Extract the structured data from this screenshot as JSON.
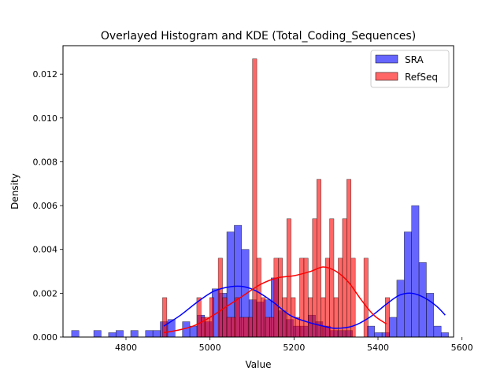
{
  "chart_data": {
    "type": "histogram",
    "title": "Overlayed Histogram and KDE (Total_Coding_Sequences)",
    "xlabel": "Value",
    "ylabel": "Density",
    "xlim": [
      4650,
      5580
    ],
    "ylim": [
      0,
      0.0133
    ],
    "x_ticks": [
      4800,
      5000,
      5200,
      5400,
      5600
    ],
    "y_ticks": [
      0.0,
      0.002,
      0.004,
      0.006,
      0.008,
      0.01,
      0.012
    ],
    "y_tick_labels": [
      "0.000",
      "0.002",
      "0.004",
      "0.006",
      "0.008",
      "0.010",
      "0.012"
    ],
    "legend": {
      "placement": "top-right",
      "entries": [
        "SRA",
        "RefSeq"
      ]
    },
    "grid": false,
    "series": [
      {
        "name": "SRA",
        "color": "#0000ff",
        "bin_width": 17.6,
        "bins": [
          [
            4670.4,
            0.0003
          ],
          [
            4723.2,
            0.0003
          ],
          [
            4758.4,
            0.0002
          ],
          [
            4776.0,
            0.0003
          ],
          [
            4811.2,
            0.0003
          ],
          [
            4846.4,
            0.0003
          ],
          [
            4864.0,
            0.0003
          ],
          [
            4881.6,
            0.0007
          ],
          [
            4899.2,
            0.0008
          ],
          [
            4934.4,
            0.0007
          ],
          [
            4952.0,
            0.0005
          ],
          [
            4969.6,
            0.001
          ],
          [
            4987.2,
            0.0007
          ],
          [
            5004.8,
            0.0022
          ],
          [
            5022.4,
            0.002
          ],
          [
            5040.0,
            0.0048
          ],
          [
            5057.6,
            0.0051
          ],
          [
            5075.2,
            0.004
          ],
          [
            5092.8,
            0.0017
          ],
          [
            5110.4,
            0.0016
          ],
          [
            5128.0,
            0.0017
          ],
          [
            5145.6,
            0.0027
          ],
          [
            5163.2,
            0.0012
          ],
          [
            5180.8,
            0.0008
          ],
          [
            5198.4,
            0.0005
          ],
          [
            5216.0,
            0.0005
          ],
          [
            5233.6,
            0.001
          ],
          [
            5251.2,
            0.0007
          ],
          [
            5268.8,
            0.0005
          ],
          [
            5286.4,
            0.0003
          ],
          [
            5304.0,
            0.0003
          ],
          [
            5321.6,
            0.0003
          ],
          [
            5374.4,
            0.0005
          ],
          [
            5392.0,
            0.0002
          ],
          [
            5409.6,
            0.0002
          ],
          [
            5427.2,
            0.0009
          ],
          [
            5444.8,
            0.0026
          ],
          [
            5462.4,
            0.0048
          ],
          [
            5480.0,
            0.006
          ],
          [
            5497.6,
            0.0034
          ],
          [
            5515.2,
            0.002
          ],
          [
            5532.8,
            0.0005
          ],
          [
            5550.4,
            0.0002
          ]
        ],
        "kde": [
          [
            4890,
            0.0005
          ],
          [
            4930,
            0.001
          ],
          [
            4970,
            0.0016
          ],
          [
            5010,
            0.0021
          ],
          [
            5050,
            0.0023
          ],
          [
            5080,
            0.0023
          ],
          [
            5110,
            0.0021
          ],
          [
            5150,
            0.0016
          ],
          [
            5190,
            0.001
          ],
          [
            5230,
            0.0007
          ],
          [
            5270,
            0.0005
          ],
          [
            5300,
            0.0004
          ],
          [
            5340,
            0.0005
          ],
          [
            5380,
            0.0009
          ],
          [
            5420,
            0.0015
          ],
          [
            5450,
            0.0019
          ],
          [
            5480,
            0.002
          ],
          [
            5510,
            0.0018
          ],
          [
            5540,
            0.0014
          ],
          [
            5560,
            0.001
          ]
        ]
      },
      {
        "name": "RefSeq",
        "color": "#ff0000",
        "bin_width": 10.2,
        "bins": [
          [
            4887.0,
            0.0018
          ],
          [
            4968.6,
            0.0018
          ],
          [
            4978.8,
            0.0009
          ],
          [
            4989.0,
            0.0009
          ],
          [
            4999.2,
            0.0018
          ],
          [
            5019.6,
            0.0036
          ],
          [
            5029.8,
            0.0018
          ],
          [
            5040.0,
            0.0009
          ],
          [
            5050.2,
            0.0009
          ],
          [
            5060.4,
            0.0018
          ],
          [
            5070.6,
            0.0009
          ],
          [
            5080.8,
            0.0009
          ],
          [
            5091.0,
            0.0009
          ],
          [
            5101.2,
            0.0127
          ],
          [
            5111.4,
            0.0036
          ],
          [
            5121.6,
            0.0018
          ],
          [
            5131.8,
            0.0009
          ],
          [
            5142.0,
            0.0009
          ],
          [
            5152.2,
            0.0036
          ],
          [
            5162.4,
            0.0036
          ],
          [
            5172.6,
            0.0018
          ],
          [
            5182.8,
            0.0054
          ],
          [
            5193.0,
            0.0018
          ],
          [
            5203.2,
            0.0009
          ],
          [
            5213.4,
            0.0036
          ],
          [
            5223.6,
            0.0036
          ],
          [
            5233.8,
            0.0018
          ],
          [
            5244.0,
            0.0054
          ],
          [
            5254.2,
            0.0072
          ],
          [
            5264.4,
            0.0018
          ],
          [
            5274.6,
            0.0036
          ],
          [
            5284.8,
            0.0054
          ],
          [
            5295.0,
            0.0018
          ],
          [
            5305.2,
            0.0036
          ],
          [
            5315.4,
            0.0054
          ],
          [
            5325.6,
            0.0072
          ],
          [
            5335.8,
            0.0036
          ],
          [
            5366.4,
            0.0036
          ],
          [
            5417.4,
            0.0018
          ]
        ],
        "kde": [
          [
            4890,
            0.0002
          ],
          [
            4920,
            0.0003
          ],
          [
            4960,
            0.0005
          ],
          [
            5000,
            0.0009
          ],
          [
            5040,
            0.0014
          ],
          [
            5080,
            0.0019
          ],
          [
            5120,
            0.0024
          ],
          [
            5160,
            0.0027
          ],
          [
            5200,
            0.0028
          ],
          [
            5240,
            0.003
          ],
          [
            5270,
            0.0032
          ],
          [
            5300,
            0.003
          ],
          [
            5330,
            0.0025
          ],
          [
            5360,
            0.0017
          ],
          [
            5390,
            0.001
          ],
          [
            5420,
            0.0006
          ]
        ]
      }
    ]
  }
}
